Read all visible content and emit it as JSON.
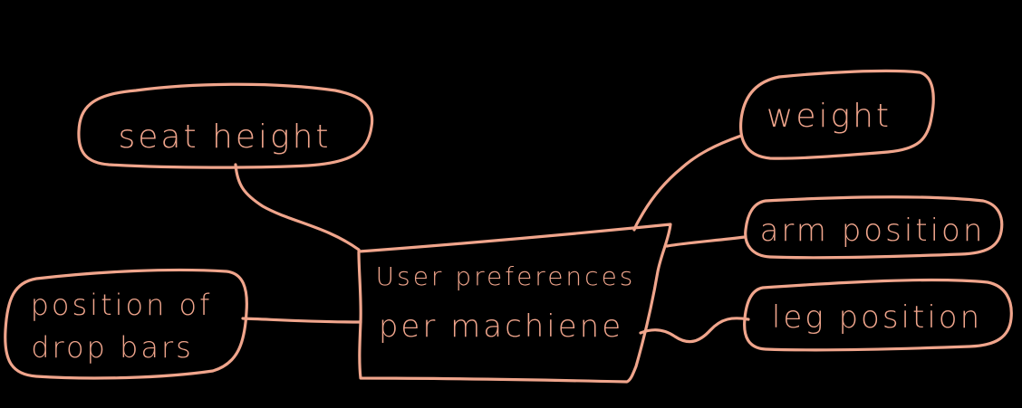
{
  "diagram": {
    "ink_color": "#f0a58c",
    "background_color": "#000000",
    "center": {
      "lines": [
        "User preferences",
        "per machiene"
      ]
    },
    "nodes": [
      {
        "id": "seat-height",
        "label": "seat height"
      },
      {
        "id": "position-of-drop-bars",
        "label": "position of drop bars"
      },
      {
        "id": "weight",
        "label": "weight"
      },
      {
        "id": "arm-position",
        "label": "arm position"
      },
      {
        "id": "leg-position",
        "label": "leg position"
      }
    ]
  }
}
